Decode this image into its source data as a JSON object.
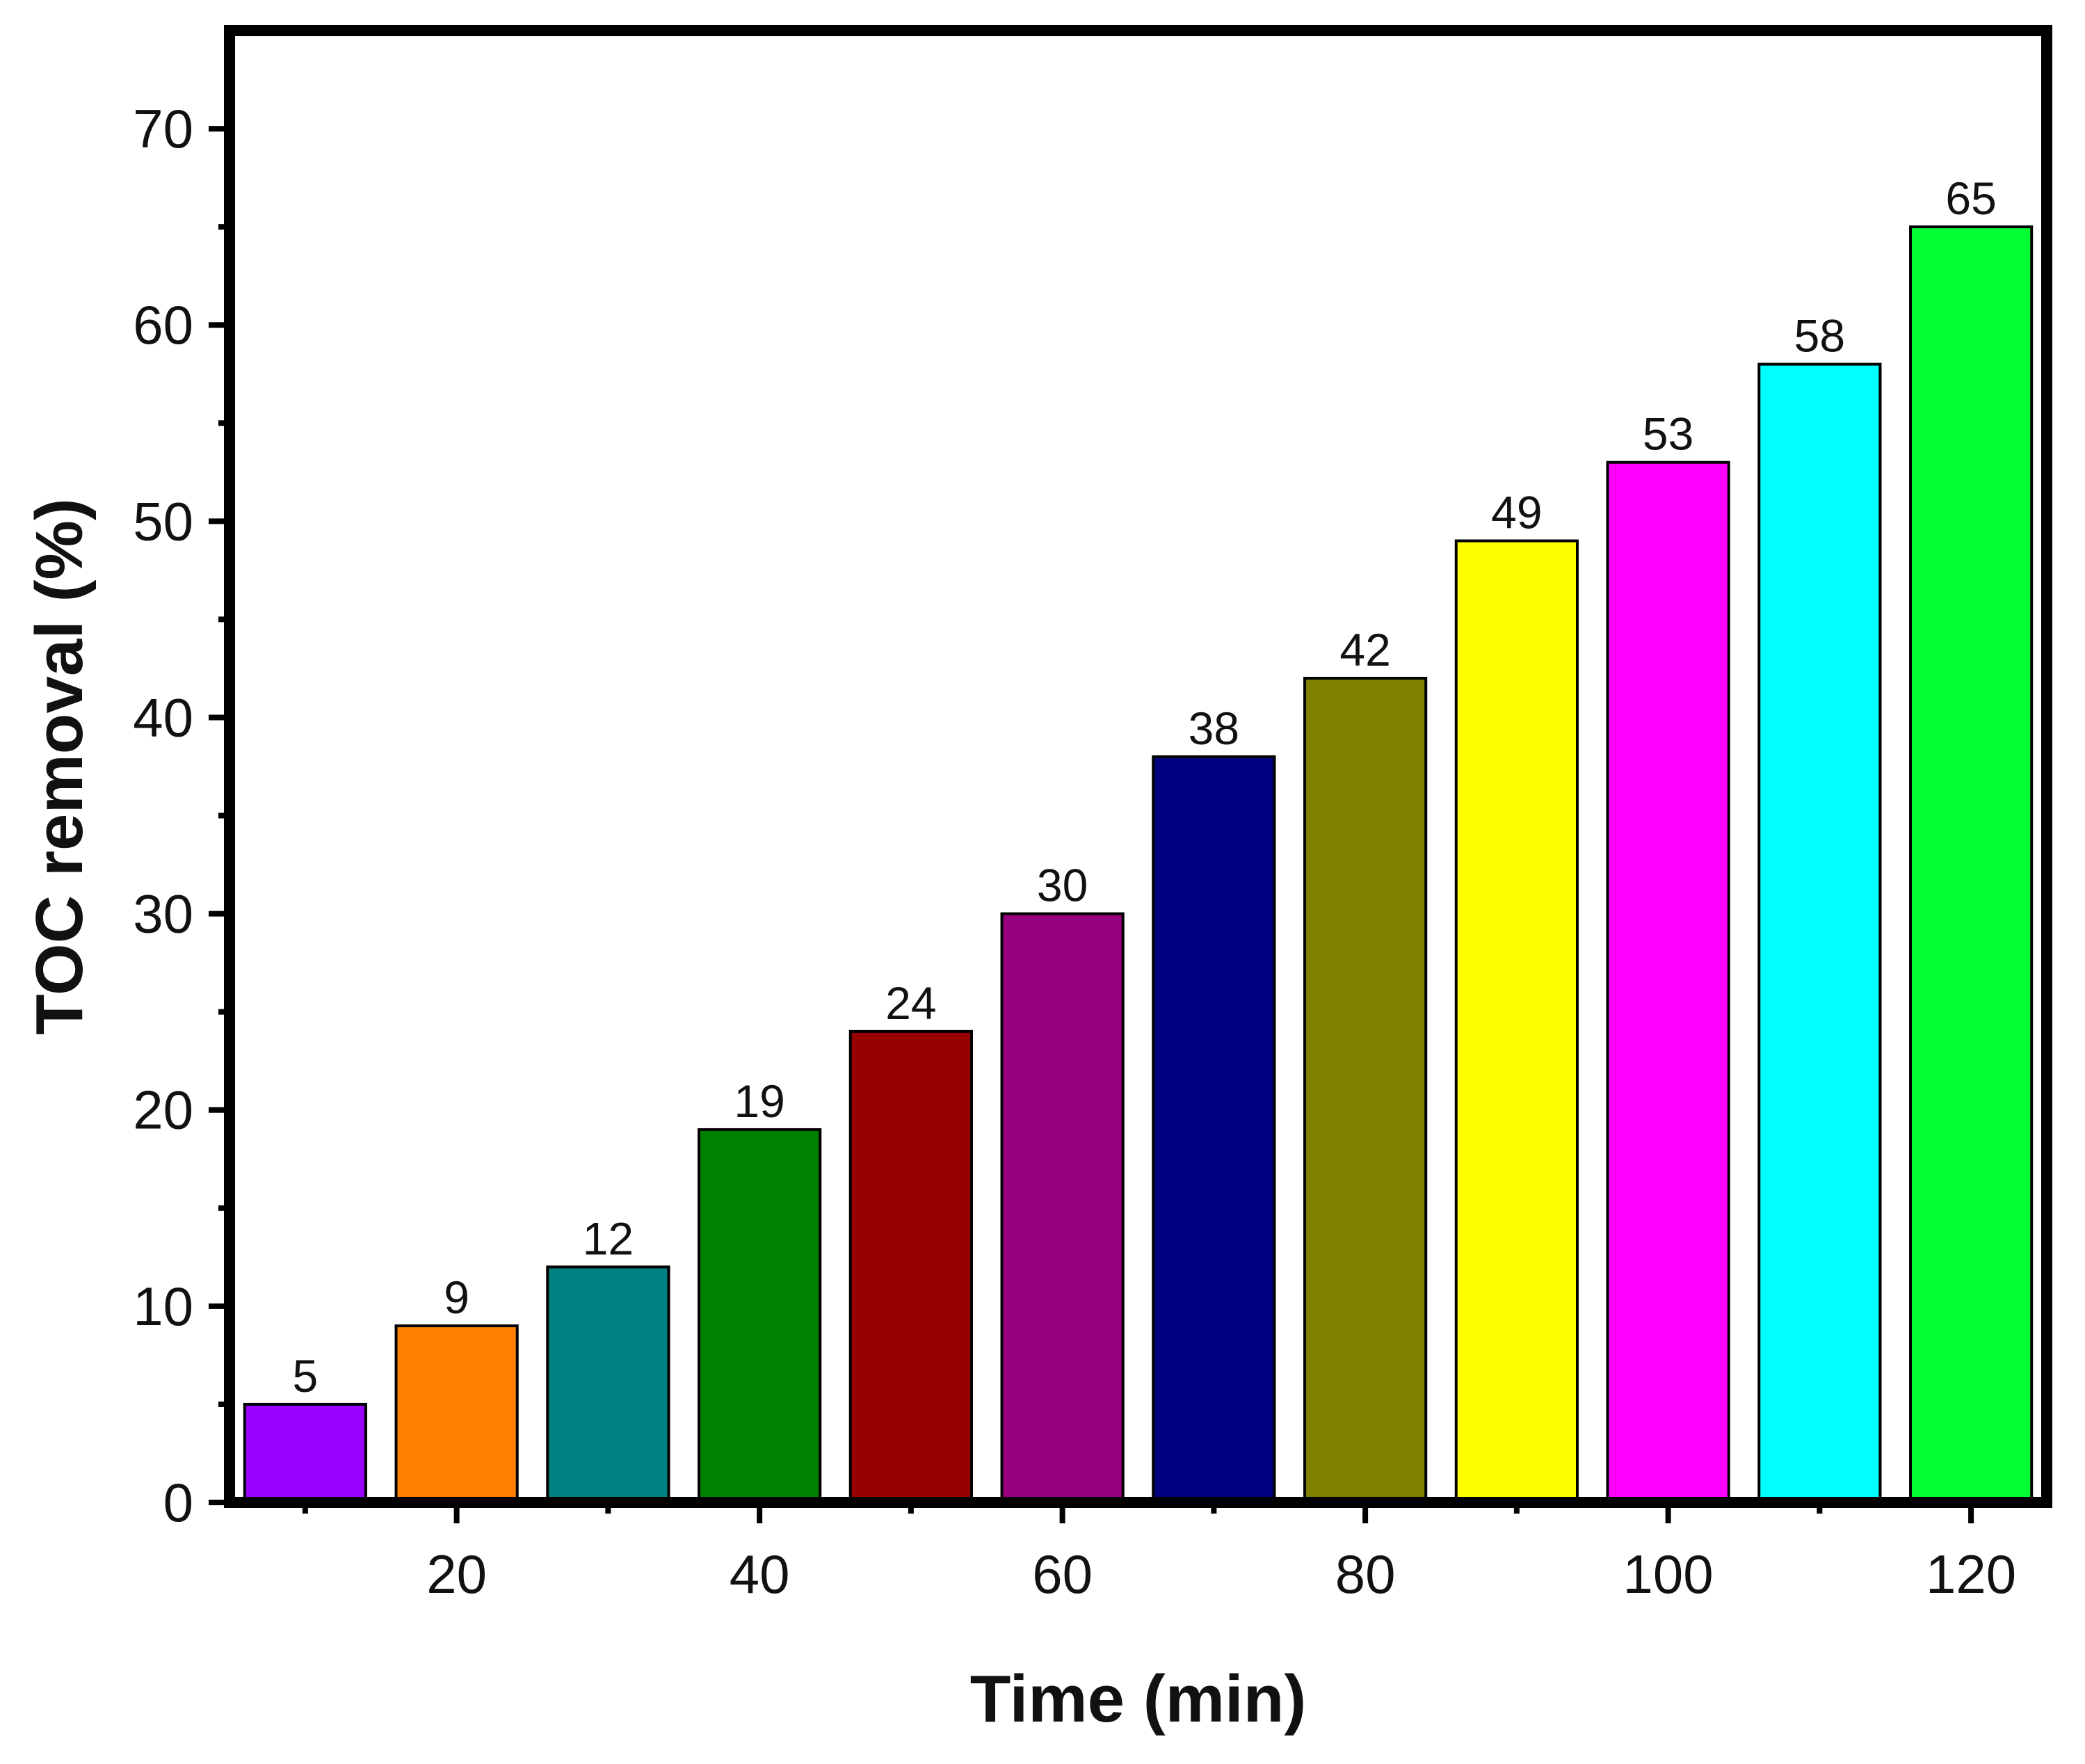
{
  "chart_data": {
    "type": "bar",
    "title": "",
    "xlabel": "Time (min)",
    "ylabel": "TOC removal (%)",
    "x": [
      10,
      20,
      30,
      40,
      50,
      60,
      70,
      80,
      90,
      100,
      110,
      120
    ],
    "values": [
      5,
      9,
      12,
      19,
      24,
      30,
      38,
      42,
      49,
      53,
      58,
      65
    ],
    "value_labels": [
      "5",
      "9",
      "12",
      "19",
      "24",
      "30",
      "38",
      "42",
      "49",
      "53",
      "58",
      "65"
    ],
    "colors": [
      "#9900ff",
      "#ff8000",
      "#008080",
      "#008000",
      "#990000",
      "#990080",
      "#000080",
      "#808000",
      "#ffff00",
      "#ff00ff",
      "#00ffff",
      "#00ff33"
    ],
    "xlim": [
      5,
      125
    ],
    "ylim": [
      0,
      75
    ],
    "x_major_ticks": [
      20,
      40,
      60,
      80,
      100,
      120
    ],
    "x_tick_labels": [
      "20",
      "40",
      "60",
      "80",
      "100",
      "120"
    ],
    "x_minor_ticks": [
      10,
      30,
      50,
      70,
      90,
      110
    ],
    "y_major_ticks": [
      0,
      10,
      20,
      30,
      40,
      50,
      60,
      70
    ],
    "y_tick_labels": [
      "0",
      "10",
      "20",
      "30",
      "40",
      "50",
      "60",
      "70"
    ],
    "y_minor_ticks": [
      5,
      15,
      25,
      35,
      45,
      55,
      65
    ],
    "grid": false,
    "legend": "none"
  }
}
